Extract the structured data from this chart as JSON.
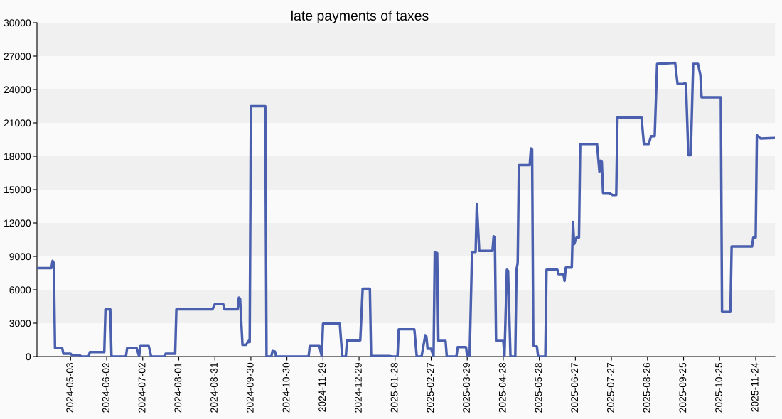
{
  "chart_data": {
    "type": "line",
    "title": "late payments of taxes",
    "x": [
      "2024-04-05",
      "2024-04-17",
      "2024-04-18",
      "2024-04-19",
      "2024-04-20",
      "2024-04-26",
      "2024-04-27",
      "2024-05-03",
      "2024-05-04",
      "2024-05-10",
      "2024-05-12",
      "2024-05-18",
      "2024-05-19",
      "2024-05-31",
      "2024-06-01",
      "2024-06-05",
      "2024-06-06",
      "2024-06-18",
      "2024-06-19",
      "2024-06-27",
      "2024-06-29",
      "2024-06-30",
      "2024-07-07",
      "2024-07-09",
      "2024-07-20",
      "2024-07-21",
      "2024-07-29",
      "2024-07-30",
      "2024-08-29",
      "2024-08-31",
      "2024-09-07",
      "2024-09-08",
      "2024-09-19",
      "2024-09-20",
      "2024-09-21",
      "2024-09-23",
      "2024-09-26",
      "2024-09-28",
      "2024-09-29",
      "2024-09-30",
      "2024-10-12",
      "2024-10-13",
      "2024-10-17",
      "2024-10-18",
      "2024-10-20",
      "2024-10-21",
      "2024-11-17",
      "2024-11-18",
      "2024-11-26",
      "2024-11-28",
      "2024-11-29",
      "2024-12-13",
      "2024-12-15",
      "2024-12-18",
      "2024-12-19",
      "2024-12-30",
      "2025-01-01",
      "2025-01-07",
      "2025-01-08",
      "2025-01-23",
      "2025-01-26",
      "2025-01-30",
      "2025-01-31",
      "2025-02-13",
      "2025-02-15",
      "2025-02-19",
      "2025-02-22",
      "2025-02-23",
      "2025-02-24",
      "2025-02-27",
      "2025-03-01",
      "2025-03-02",
      "2025-03-04",
      "2025-03-05",
      "2025-03-11",
      "2025-03-12",
      "2025-03-20",
      "2025-03-21",
      "2025-03-28",
      "2025-03-29",
      "2025-03-31",
      "2025-04-02",
      "2025-04-05",
      "2025-04-06",
      "2025-04-08",
      "2025-04-19",
      "2025-04-20",
      "2025-04-21",
      "2025-04-22",
      "2025-04-28",
      "2025-04-29",
      "2025-05-01",
      "2025-05-02",
      "2025-05-04",
      "2025-05-08",
      "2025-05-09",
      "2025-05-10",
      "2025-05-11",
      "2025-05-20",
      "2025-05-21",
      "2025-05-22",
      "2025-05-23",
      "2025-05-26",
      "2025-05-27",
      "2025-06-02",
      "2025-06-03",
      "2025-06-12",
      "2025-06-13",
      "2025-06-17",
      "2025-06-18",
      "2025-06-19",
      "2025-06-24",
      "2025-06-25",
      "2025-06-26",
      "2025-06-28",
      "2025-06-30",
      "2025-07-01",
      "2025-07-15",
      "2025-07-17",
      "2025-07-18",
      "2025-07-19",
      "2025-07-20",
      "2025-07-25",
      "2025-07-28",
      "2025-07-31",
      "2025-08-01",
      "2025-08-21",
      "2025-08-23",
      "2025-08-27",
      "2025-08-29",
      "2025-09-01",
      "2025-09-03",
      "2025-09-18",
      "2025-09-20",
      "2025-09-25",
      "2025-09-26",
      "2025-09-27",
      "2025-09-29",
      "2025-10-01",
      "2025-10-03",
      "2025-10-07",
      "2025-10-09",
      "2025-10-10",
      "2025-10-26",
      "2025-10-27",
      "2025-11-03",
      "2025-11-04",
      "2025-11-21",
      "2025-11-22",
      "2025-11-24",
      "2025-11-25",
      "2025-11-28",
      "2025-12-10"
    ],
    "series": [
      {
        "color": "#4a5fae",
        "values": [
          7950,
          7950,
          8600,
          8400,
          750,
          750,
          250,
          250,
          150,
          150,
          0,
          0,
          400,
          400,
          4250,
          4250,
          0,
          0,
          750,
          750,
          0,
          950,
          950,
          0,
          0,
          250,
          250,
          4250,
          4250,
          4700,
          4700,
          4250,
          4250,
          5300,
          5200,
          1050,
          1050,
          1400,
          1300,
          22500,
          22500,
          0,
          0,
          500,
          450,
          0,
          0,
          950,
          950,
          0,
          2950,
          2950,
          0,
          0,
          1450,
          1450,
          6100,
          6100,
          50,
          50,
          0,
          0,
          2450,
          2450,
          0,
          0,
          1850,
          1800,
          700,
          700,
          0,
          9400,
          9300,
          1400,
          1400,
          0,
          0,
          850,
          850,
          0,
          0,
          9400,
          9400,
          13700,
          9500,
          9500,
          10800,
          10700,
          1400,
          1400,
          0,
          7800,
          7700,
          0,
          0,
          7800,
          8400,
          17200,
          17200,
          18700,
          18600,
          1000,
          900,
          0,
          0,
          7800,
          7800,
          7400,
          7400,
          6800,
          8000,
          8000,
          12100,
          10100,
          10700,
          10700,
          19100,
          19100,
          16600,
          17600,
          17500,
          14700,
          14700,
          14500,
          14500,
          21500,
          21500,
          19100,
          19100,
          19800,
          19800,
          26300,
          26400,
          24500,
          24500,
          24600,
          24500,
          18100,
          18100,
          26300,
          26300,
          25300,
          23300,
          23300,
          4000,
          4000,
          9900,
          9900,
          10700,
          10700,
          19900,
          19600,
          19650
        ]
      }
    ],
    "xlim": [
      "2024-04-05",
      "2025-12-10"
    ],
    "xticks": [
      "2024-05-03",
      "2024-06-02",
      "2024-07-02",
      "2024-08-01",
      "2024-08-31",
      "2024-09-30",
      "2024-10-30",
      "2024-11-29",
      "2024-12-29",
      "2025-01-28",
      "2025-02-27",
      "2025-03-29",
      "2025-04-28",
      "2025-05-28",
      "2025-06-27",
      "2025-07-27",
      "2025-08-26",
      "2025-09-25",
      "2025-10-25",
      "2025-11-24"
    ],
    "ylim": [
      0,
      30000
    ],
    "yticks": [
      0,
      3000,
      6000,
      9000,
      12000,
      15000,
      18000,
      21000,
      24000,
      27000,
      30000
    ],
    "line_style": "solid",
    "marker": "none"
  }
}
